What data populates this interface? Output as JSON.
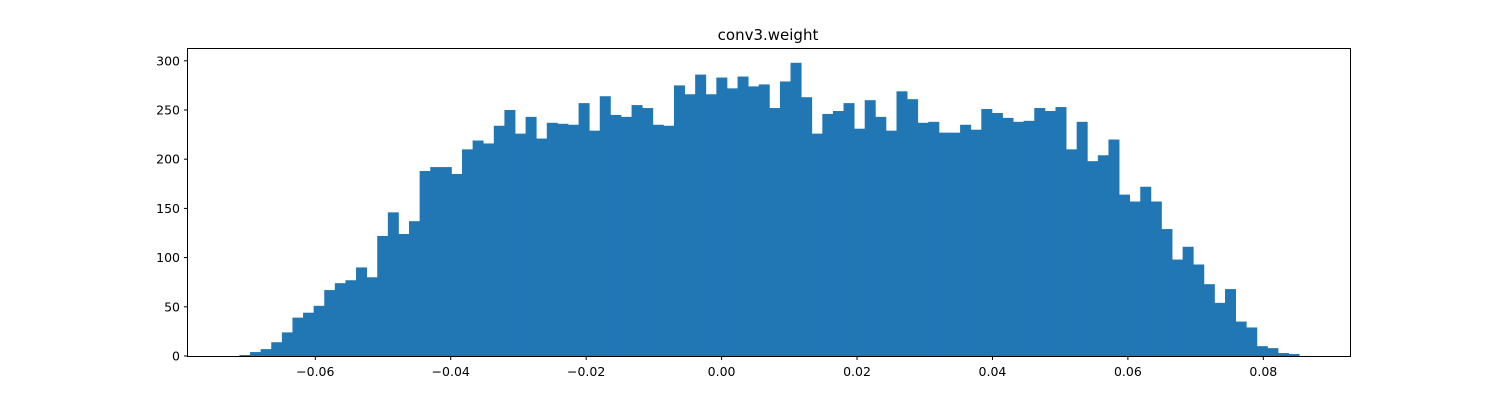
{
  "chart_data": {
    "type": "histogram",
    "title": "conv3.weight",
    "xlabel": "",
    "ylabel": "",
    "xlim": [
      -0.0788,
      0.0928
    ],
    "ylim": [
      0,
      312
    ],
    "xticks": [
      -0.06,
      -0.04,
      -0.02,
      0.0,
      0.02,
      0.04,
      0.06,
      0.08
    ],
    "xtick_labels": [
      "−0.06",
      "−0.04",
      "−0.02",
      "0.00",
      "0.02",
      "0.04",
      "0.06",
      "0.08"
    ],
    "yticks": [
      0,
      50,
      100,
      150,
      200,
      250,
      300
    ],
    "ytick_labels": [
      "0",
      "50",
      "100",
      "150",
      "200",
      "250",
      "300"
    ],
    "bin_start": -0.0712,
    "bin_width": 0.001565,
    "values": [
      1,
      4,
      7,
      14,
      24,
      39,
      44,
      51,
      67,
      74,
      77,
      90,
      80,
      122,
      146,
      124,
      137,
      188,
      192,
      192,
      185,
      210,
      219,
      216,
      234,
      250,
      226,
      243,
      221,
      237,
      236,
      235,
      257,
      229,
      264,
      245,
      243,
      255,
      252,
      235,
      234,
      275,
      266,
      286,
      266,
      283,
      272,
      284,
      274,
      276,
      252,
      279,
      298,
      263,
      226,
      246,
      249,
      257,
      231,
      260,
      243,
      229,
      269,
      261,
      237,
      238,
      227,
      227,
      235,
      230,
      251,
      247,
      242,
      238,
      239,
      252,
      249,
      253,
      210,
      238,
      198,
      204,
      220,
      164,
      157,
      172,
      157,
      129,
      98,
      111,
      93,
      73,
      54,
      68,
      35,
      29,
      10,
      8,
      3,
      2
    ],
    "bar_color": "#2077b4",
    "grid": false
  }
}
